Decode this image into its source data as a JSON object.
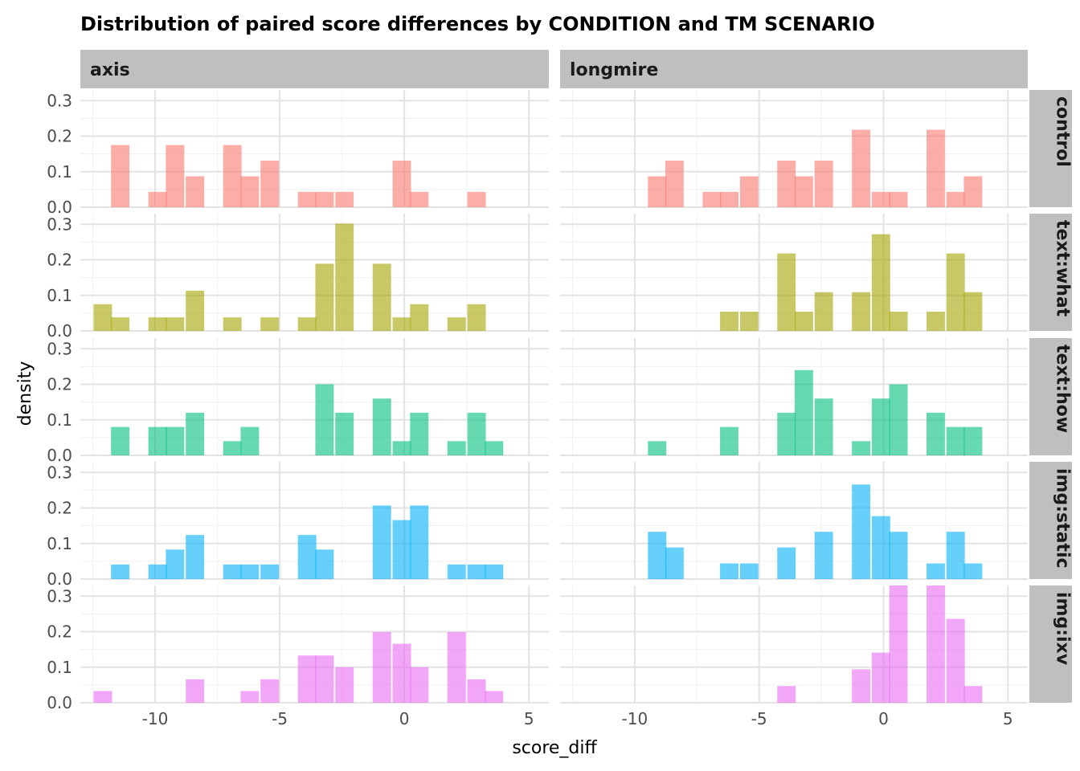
{
  "chart_data": {
    "type": "bar",
    "subtype": "faceted-histogram",
    "title": "Distribution of paired score differences by CONDITION and TM SCENARIO",
    "xlabel": "score_diff",
    "ylabel": "density",
    "xlim": [
      -13,
      5.8
    ],
    "ylim": [
      0,
      0.33
    ],
    "xticks": [
      -10,
      -5,
      0,
      5
    ],
    "xtick_labels": [
      "-10",
      "-5",
      "0",
      "5"
    ],
    "yticks": [
      0.0,
      0.1,
      0.2,
      0.3
    ],
    "ytick_labels": [
      "0.0",
      "0.1",
      "0.2",
      "0.3"
    ],
    "grid": true,
    "legend": "none",
    "bin_width": 0.74,
    "columns": [
      "axis",
      "longmire"
    ],
    "rows": [
      {
        "label": "control",
        "color": "#F8766D"
      },
      {
        "label": "text:what",
        "color": "#A3A500"
      },
      {
        "label": "text:how",
        "color": "#00BF7D"
      },
      {
        "label": "img:static",
        "color": "#00B0F6"
      },
      {
        "label": "img:ixv",
        "color": "#E76BF3"
      }
    ],
    "panels": [
      {
        "row": "control",
        "col": "axis",
        "bins": [
          {
            "x": -11.4,
            "y": 0.175
          },
          {
            "x": -9.9,
            "y": 0.043
          },
          {
            "x": -9.2,
            "y": 0.175
          },
          {
            "x": -8.4,
            "y": 0.087
          },
          {
            "x": -6.9,
            "y": 0.175
          },
          {
            "x": -6.2,
            "y": 0.087
          },
          {
            "x": -5.4,
            "y": 0.131
          },
          {
            "x": -3.9,
            "y": 0.043
          },
          {
            "x": -3.2,
            "y": 0.043
          },
          {
            "x": -2.4,
            "y": 0.043
          },
          {
            "x": -0.1,
            "y": 0.131
          },
          {
            "x": 0.6,
            "y": 0.043
          },
          {
            "x": 2.9,
            "y": 0.043
          }
        ]
      },
      {
        "row": "control",
        "col": "longmire",
        "bins": [
          {
            "x": -9.1,
            "y": 0.087
          },
          {
            "x": -8.4,
            "y": 0.131
          },
          {
            "x": -6.9,
            "y": 0.043
          },
          {
            "x": -6.2,
            "y": 0.043
          },
          {
            "x": -5.4,
            "y": 0.087
          },
          {
            "x": -3.9,
            "y": 0.131
          },
          {
            "x": -3.2,
            "y": 0.087
          },
          {
            "x": -2.4,
            "y": 0.131
          },
          {
            "x": -0.9,
            "y": 0.218
          },
          {
            "x": -0.1,
            "y": 0.043
          },
          {
            "x": 0.6,
            "y": 0.043
          },
          {
            "x": 2.1,
            "y": 0.218
          },
          {
            "x": 2.9,
            "y": 0.043
          },
          {
            "x": 3.6,
            "y": 0.087
          }
        ]
      },
      {
        "row": "text:what",
        "col": "axis",
        "bins": [
          {
            "x": -12.1,
            "y": 0.075
          },
          {
            "x": -11.4,
            "y": 0.038
          },
          {
            "x": -9.9,
            "y": 0.038
          },
          {
            "x": -9.2,
            "y": 0.038
          },
          {
            "x": -8.4,
            "y": 0.113
          },
          {
            "x": -6.9,
            "y": 0.038
          },
          {
            "x": -5.4,
            "y": 0.038
          },
          {
            "x": -3.9,
            "y": 0.038
          },
          {
            "x": -3.2,
            "y": 0.189
          },
          {
            "x": -2.4,
            "y": 0.302
          },
          {
            "x": -0.9,
            "y": 0.189
          },
          {
            "x": -0.1,
            "y": 0.038
          },
          {
            "x": 0.6,
            "y": 0.075
          },
          {
            "x": 2.1,
            "y": 0.038
          },
          {
            "x": 2.9,
            "y": 0.075
          }
        ]
      },
      {
        "row": "text:what",
        "col": "longmire",
        "bins": [
          {
            "x": -6.2,
            "y": 0.054
          },
          {
            "x": -5.4,
            "y": 0.054
          },
          {
            "x": -3.9,
            "y": 0.218
          },
          {
            "x": -3.2,
            "y": 0.054
          },
          {
            "x": -2.4,
            "y": 0.109
          },
          {
            "x": -0.9,
            "y": 0.109
          },
          {
            "x": -0.1,
            "y": 0.272
          },
          {
            "x": 0.6,
            "y": 0.054
          },
          {
            "x": 2.1,
            "y": 0.054
          },
          {
            "x": 2.9,
            "y": 0.218
          },
          {
            "x": 3.6,
            "y": 0.109
          }
        ]
      },
      {
        "row": "text:how",
        "col": "axis",
        "bins": [
          {
            "x": -11.4,
            "y": 0.08
          },
          {
            "x": -9.9,
            "y": 0.08
          },
          {
            "x": -9.2,
            "y": 0.08
          },
          {
            "x": -8.4,
            "y": 0.12
          },
          {
            "x": -6.9,
            "y": 0.04
          },
          {
            "x": -6.2,
            "y": 0.08
          },
          {
            "x": -3.2,
            "y": 0.2
          },
          {
            "x": -2.4,
            "y": 0.12
          },
          {
            "x": -0.9,
            "y": 0.16
          },
          {
            "x": -0.1,
            "y": 0.04
          },
          {
            "x": 0.6,
            "y": 0.12
          },
          {
            "x": 2.1,
            "y": 0.04
          },
          {
            "x": 2.9,
            "y": 0.12
          },
          {
            "x": 3.6,
            "y": 0.04
          }
        ]
      },
      {
        "row": "text:how",
        "col": "longmire",
        "bins": [
          {
            "x": -9.1,
            "y": 0.04
          },
          {
            "x": -6.2,
            "y": 0.08
          },
          {
            "x": -3.9,
            "y": 0.12
          },
          {
            "x": -3.2,
            "y": 0.24
          },
          {
            "x": -2.4,
            "y": 0.16
          },
          {
            "x": -0.9,
            "y": 0.04
          },
          {
            "x": -0.1,
            "y": 0.16
          },
          {
            "x": 0.6,
            "y": 0.2
          },
          {
            "x": 2.1,
            "y": 0.12
          },
          {
            "x": 2.9,
            "y": 0.08
          },
          {
            "x": 3.6,
            "y": 0.08
          }
        ]
      },
      {
        "row": "img:static",
        "col": "axis",
        "bins": [
          {
            "x": -11.4,
            "y": 0.041
          },
          {
            "x": -9.9,
            "y": 0.041
          },
          {
            "x": -9.2,
            "y": 0.083
          },
          {
            "x": -8.4,
            "y": 0.124
          },
          {
            "x": -6.9,
            "y": 0.041
          },
          {
            "x": -6.2,
            "y": 0.041
          },
          {
            "x": -5.4,
            "y": 0.041
          },
          {
            "x": -3.9,
            "y": 0.124
          },
          {
            "x": -3.2,
            "y": 0.083
          },
          {
            "x": -0.9,
            "y": 0.207
          },
          {
            "x": -0.1,
            "y": 0.166
          },
          {
            "x": 0.6,
            "y": 0.207
          },
          {
            "x": 2.1,
            "y": 0.041
          },
          {
            "x": 2.9,
            "y": 0.041
          },
          {
            "x": 3.6,
            "y": 0.041
          }
        ]
      },
      {
        "row": "img:static",
        "col": "longmire",
        "bins": [
          {
            "x": -9.1,
            "y": 0.133
          },
          {
            "x": -8.4,
            "y": 0.089
          },
          {
            "x": -6.2,
            "y": 0.044
          },
          {
            "x": -5.4,
            "y": 0.044
          },
          {
            "x": -3.9,
            "y": 0.089
          },
          {
            "x": -2.4,
            "y": 0.133
          },
          {
            "x": -0.9,
            "y": 0.266
          },
          {
            "x": -0.1,
            "y": 0.177
          },
          {
            "x": 0.6,
            "y": 0.133
          },
          {
            "x": 2.1,
            "y": 0.044
          },
          {
            "x": 2.9,
            "y": 0.133
          },
          {
            "x": 3.6,
            "y": 0.044
          }
        ]
      },
      {
        "row": "img:ixv",
        "col": "axis",
        "bins": [
          {
            "x": -12.1,
            "y": 0.033
          },
          {
            "x": -8.4,
            "y": 0.066
          },
          {
            "x": -6.2,
            "y": 0.033
          },
          {
            "x": -5.4,
            "y": 0.066
          },
          {
            "x": -3.9,
            "y": 0.133
          },
          {
            "x": -3.2,
            "y": 0.133
          },
          {
            "x": -2.4,
            "y": 0.1
          },
          {
            "x": -0.9,
            "y": 0.199
          },
          {
            "x": -0.1,
            "y": 0.166
          },
          {
            "x": 0.6,
            "y": 0.1
          },
          {
            "x": 2.1,
            "y": 0.199
          },
          {
            "x": 2.9,
            "y": 0.066
          },
          {
            "x": 3.6,
            "y": 0.033
          }
        ]
      },
      {
        "row": "img:ixv",
        "col": "longmire",
        "bins": [
          {
            "x": -3.9,
            "y": 0.047
          },
          {
            "x": -0.9,
            "y": 0.094
          },
          {
            "x": -0.1,
            "y": 0.141
          },
          {
            "x": 0.6,
            "y": 0.33
          },
          {
            "x": 2.1,
            "y": 0.33
          },
          {
            "x": 2.9,
            "y": 0.236
          },
          {
            "x": 3.6,
            "y": 0.047
          }
        ]
      }
    ]
  }
}
